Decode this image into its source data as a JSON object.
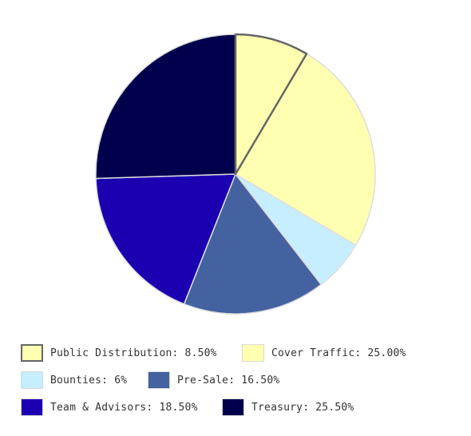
{
  "chart_data": {
    "type": "pie",
    "title": "",
    "slices": [
      {
        "label": "Public Distribution: 8.50%",
        "value": 8.5,
        "color": "#ffffb2",
        "highlighted": true
      },
      {
        "label": "Cover Traffic: 25.00%",
        "value": 25.0,
        "color": "#ffffb2",
        "highlighted": false
      },
      {
        "label": "Bounties: 6%",
        "value": 6.0,
        "color": "#c6eeff",
        "highlighted": false
      },
      {
        "label": "Pre-Sale: 16.50%",
        "value": 16.5,
        "color": "#4562a0",
        "highlighted": false
      },
      {
        "label": "Team & Advisors: 18.50%",
        "value": 18.5,
        "color": "#1a00b0",
        "highlighted": false
      },
      {
        "label": "Treasury: 25.50%",
        "value": 25.5,
        "color": "#00004d",
        "highlighted": false
      }
    ],
    "legend_position": "bottom",
    "highlight_stroke": "#666666",
    "slice_stroke": "#dddddd"
  }
}
